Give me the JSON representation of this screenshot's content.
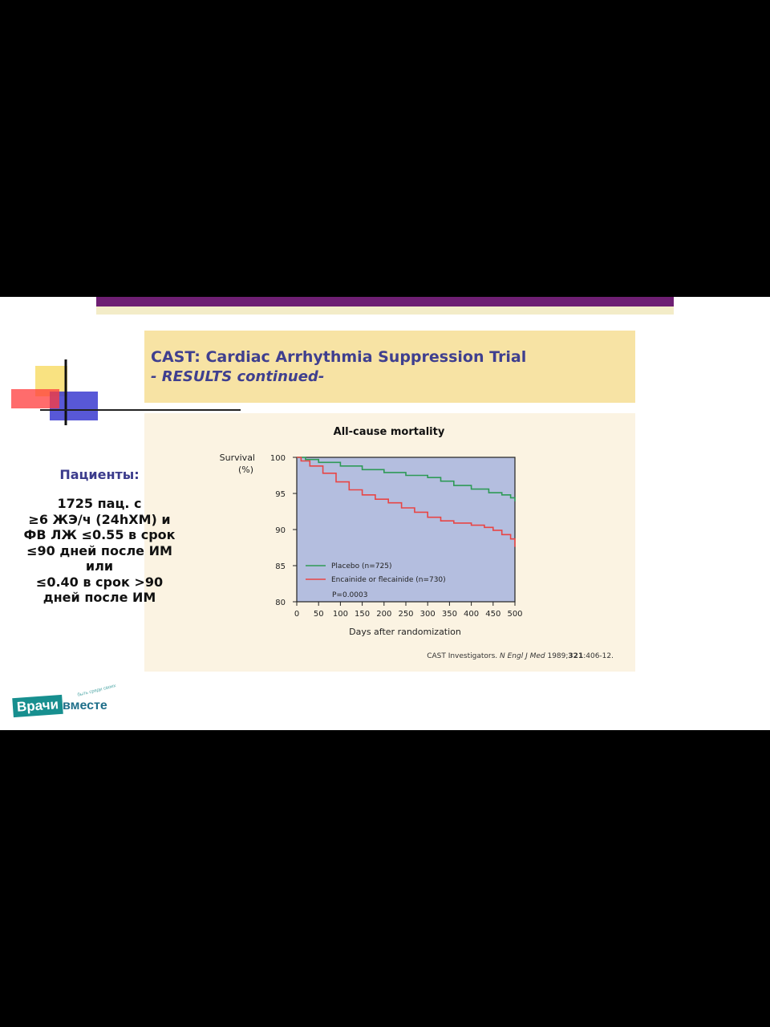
{
  "slide": {
    "title": "CAST: Cardiac Arrhythmia Suppression Trial",
    "subtitle": "- RESULTS continued-",
    "patients_heading": "Пациенты:",
    "patients_lines": [
      "1725 пац. с",
      "≥6 ЖЭ/ч (24hXM) и",
      "ФВ ЛЖ ≤0.55 в срок",
      "≤90 дней после  ИМ",
      "или",
      "≤0.40 в срок >90",
      "дней после ИМ"
    ],
    "logo": {
      "main": "Врачи",
      "second": "вместе",
      "tagline": "быть среди своих"
    },
    "colors": {
      "header_bar": "#6e1f73",
      "title_box": "#f7e3a4",
      "content_box": "#fbf3e2",
      "title_text": "#3f3f8f",
      "plot_area": "#b4bedf",
      "placebo_line": "#2e9a57",
      "encainide_line": "#e84545"
    }
  },
  "chart_data": {
    "type": "line",
    "title": "All-cause mortality",
    "ylabel_lines": [
      "Survival",
      "(%)"
    ],
    "xlabel": "Days after randomization",
    "xlim": [
      0,
      500
    ],
    "ylim": [
      80,
      100
    ],
    "xticks": [
      0,
      50,
      100,
      150,
      200,
      250,
      300,
      350,
      400,
      450,
      500
    ],
    "yticks": [
      80,
      85,
      90,
      95,
      100
    ],
    "grid": false,
    "legend_position": "bottom-left",
    "annotation": "P=0.0003",
    "citation": {
      "prefix": "CAST Investigators. ",
      "journal": "N Engl J Med",
      "year": " 1989;",
      "volume": "321",
      "pages": ":406-12."
    },
    "series": [
      {
        "name": "Placebo (n=725)",
        "color": "#2e9a57",
        "x": [
          0,
          20,
          50,
          100,
          150,
          200,
          250,
          300,
          330,
          360,
          400,
          440,
          470,
          490,
          500
        ],
        "y": [
          100,
          99.7,
          99.3,
          98.8,
          98.3,
          97.9,
          97.5,
          97.2,
          96.7,
          96.1,
          95.6,
          95.1,
          94.8,
          94.4,
          93.9
        ]
      },
      {
        "name": "Encainide or flecainide (n=730)",
        "color": "#e84545",
        "x": [
          0,
          10,
          30,
          60,
          90,
          120,
          150,
          180,
          210,
          240,
          270,
          300,
          330,
          360,
          400,
          430,
          450,
          470,
          490,
          500
        ],
        "y": [
          100,
          99.5,
          98.8,
          97.8,
          96.6,
          95.5,
          94.8,
          94.2,
          93.7,
          93.0,
          92.4,
          91.7,
          91.2,
          90.9,
          90.6,
          90.3,
          89.9,
          89.3,
          88.7,
          87.6
        ]
      }
    ]
  }
}
